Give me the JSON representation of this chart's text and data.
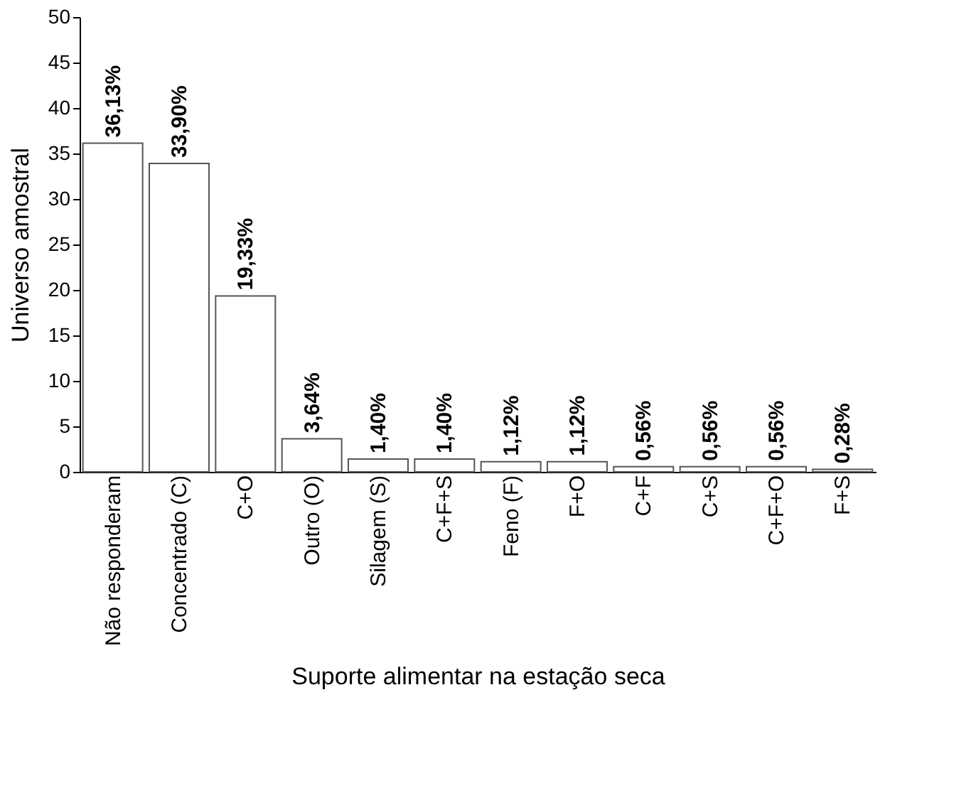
{
  "chart_data": {
    "type": "bar",
    "xlabel": "Suporte alimentar na estação seca",
    "ylabel": "Universo amostral",
    "categories": [
      "Não responderam",
      "Concentrado (C)",
      "C+O",
      "Outro (O)",
      "Silagem (S)",
      "C+F+S",
      "Feno (F)",
      "F+O",
      "C+F",
      "C+S",
      "C+F+O",
      "F+S"
    ],
    "values": [
      36.13,
      33.9,
      19.33,
      3.64,
      1.4,
      1.4,
      1.12,
      1.12,
      0.56,
      0.56,
      0.56,
      0.28
    ],
    "value_labels": [
      "36,13%",
      "33,90%",
      "19,33%",
      "3,64%",
      "1,40%",
      "1,40%",
      "1,12%",
      "1,12%",
      "0,56%",
      "0,56%",
      "0,56%",
      "0,28%"
    ],
    "color": "#ffffff",
    "ylim": [
      0,
      50
    ],
    "yticks": [
      0,
      5,
      10,
      15,
      20,
      25,
      30,
      35,
      40,
      45,
      50
    ],
    "grid": false
  }
}
